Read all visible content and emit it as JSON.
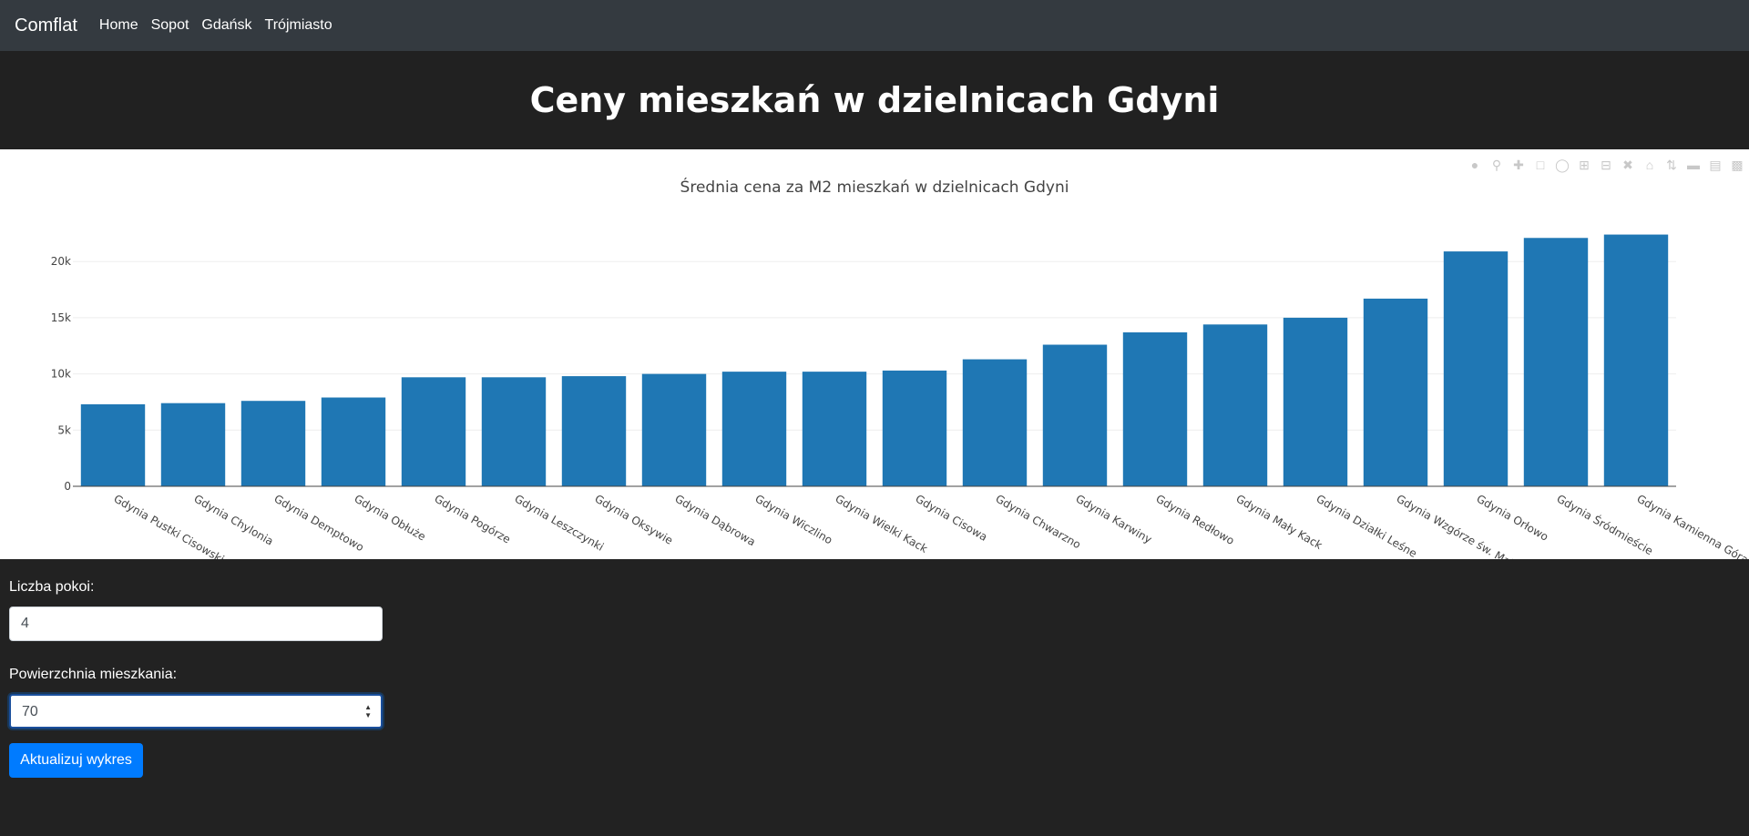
{
  "navbar": {
    "brand": "Comflat",
    "links": [
      "Home",
      "Sopot",
      "Gdańsk",
      "Trójmiasto"
    ]
  },
  "header": {
    "title": "Ceny mieszkań w dzielnicach Gdyni"
  },
  "chart_data": {
    "type": "bar",
    "title": "Średnia cena za M2 mieszkań w dzielnicach Gdyni",
    "xlabel": "",
    "ylabel": "",
    "ylim": [
      0,
      23500
    ],
    "yticks": [
      0,
      5000,
      10000,
      15000,
      20000
    ],
    "ytick_labels": [
      "0",
      "5k",
      "10k",
      "15k",
      "20k"
    ],
    "categories": [
      "Gdynia Pustki Cisowskie",
      "Gdynia Chylonia",
      "Gdynia Demptowo",
      "Gdynia Obłuże",
      "Gdynia Pogórze",
      "Gdynia Leszczynki",
      "Gdynia Oksywie",
      "Gdynia Dąbrowa",
      "Gdynia Wiczlino",
      "Gdynia Wielki Kack",
      "Gdynia Cisowa",
      "Gdynia Chwarzno",
      "Gdynia Karwiny",
      "Gdynia Redłowo",
      "Gdynia Mały Kack",
      "Gdynia Działki Leśne",
      "Gdynia Wzgórze św. Maksymiliana",
      "Gdynia Orłowo",
      "Gdynia Śródmieście",
      "Gdynia Kamienna Góra"
    ],
    "values": [
      7300,
      7400,
      7600,
      7900,
      9700,
      9700,
      9800,
      10000,
      10200,
      10200,
      10300,
      11300,
      12600,
      13700,
      14400,
      15000,
      16700,
      20900,
      22100,
      22400
    ],
    "color": "#1f77b4",
    "grid": true
  },
  "form": {
    "rooms_label": "Liczba pokoi:",
    "rooms_value": "4",
    "area_label": "Powierzchnia mieszkania:",
    "area_value": "70",
    "submit_label": "Aktualizuj wykres"
  }
}
